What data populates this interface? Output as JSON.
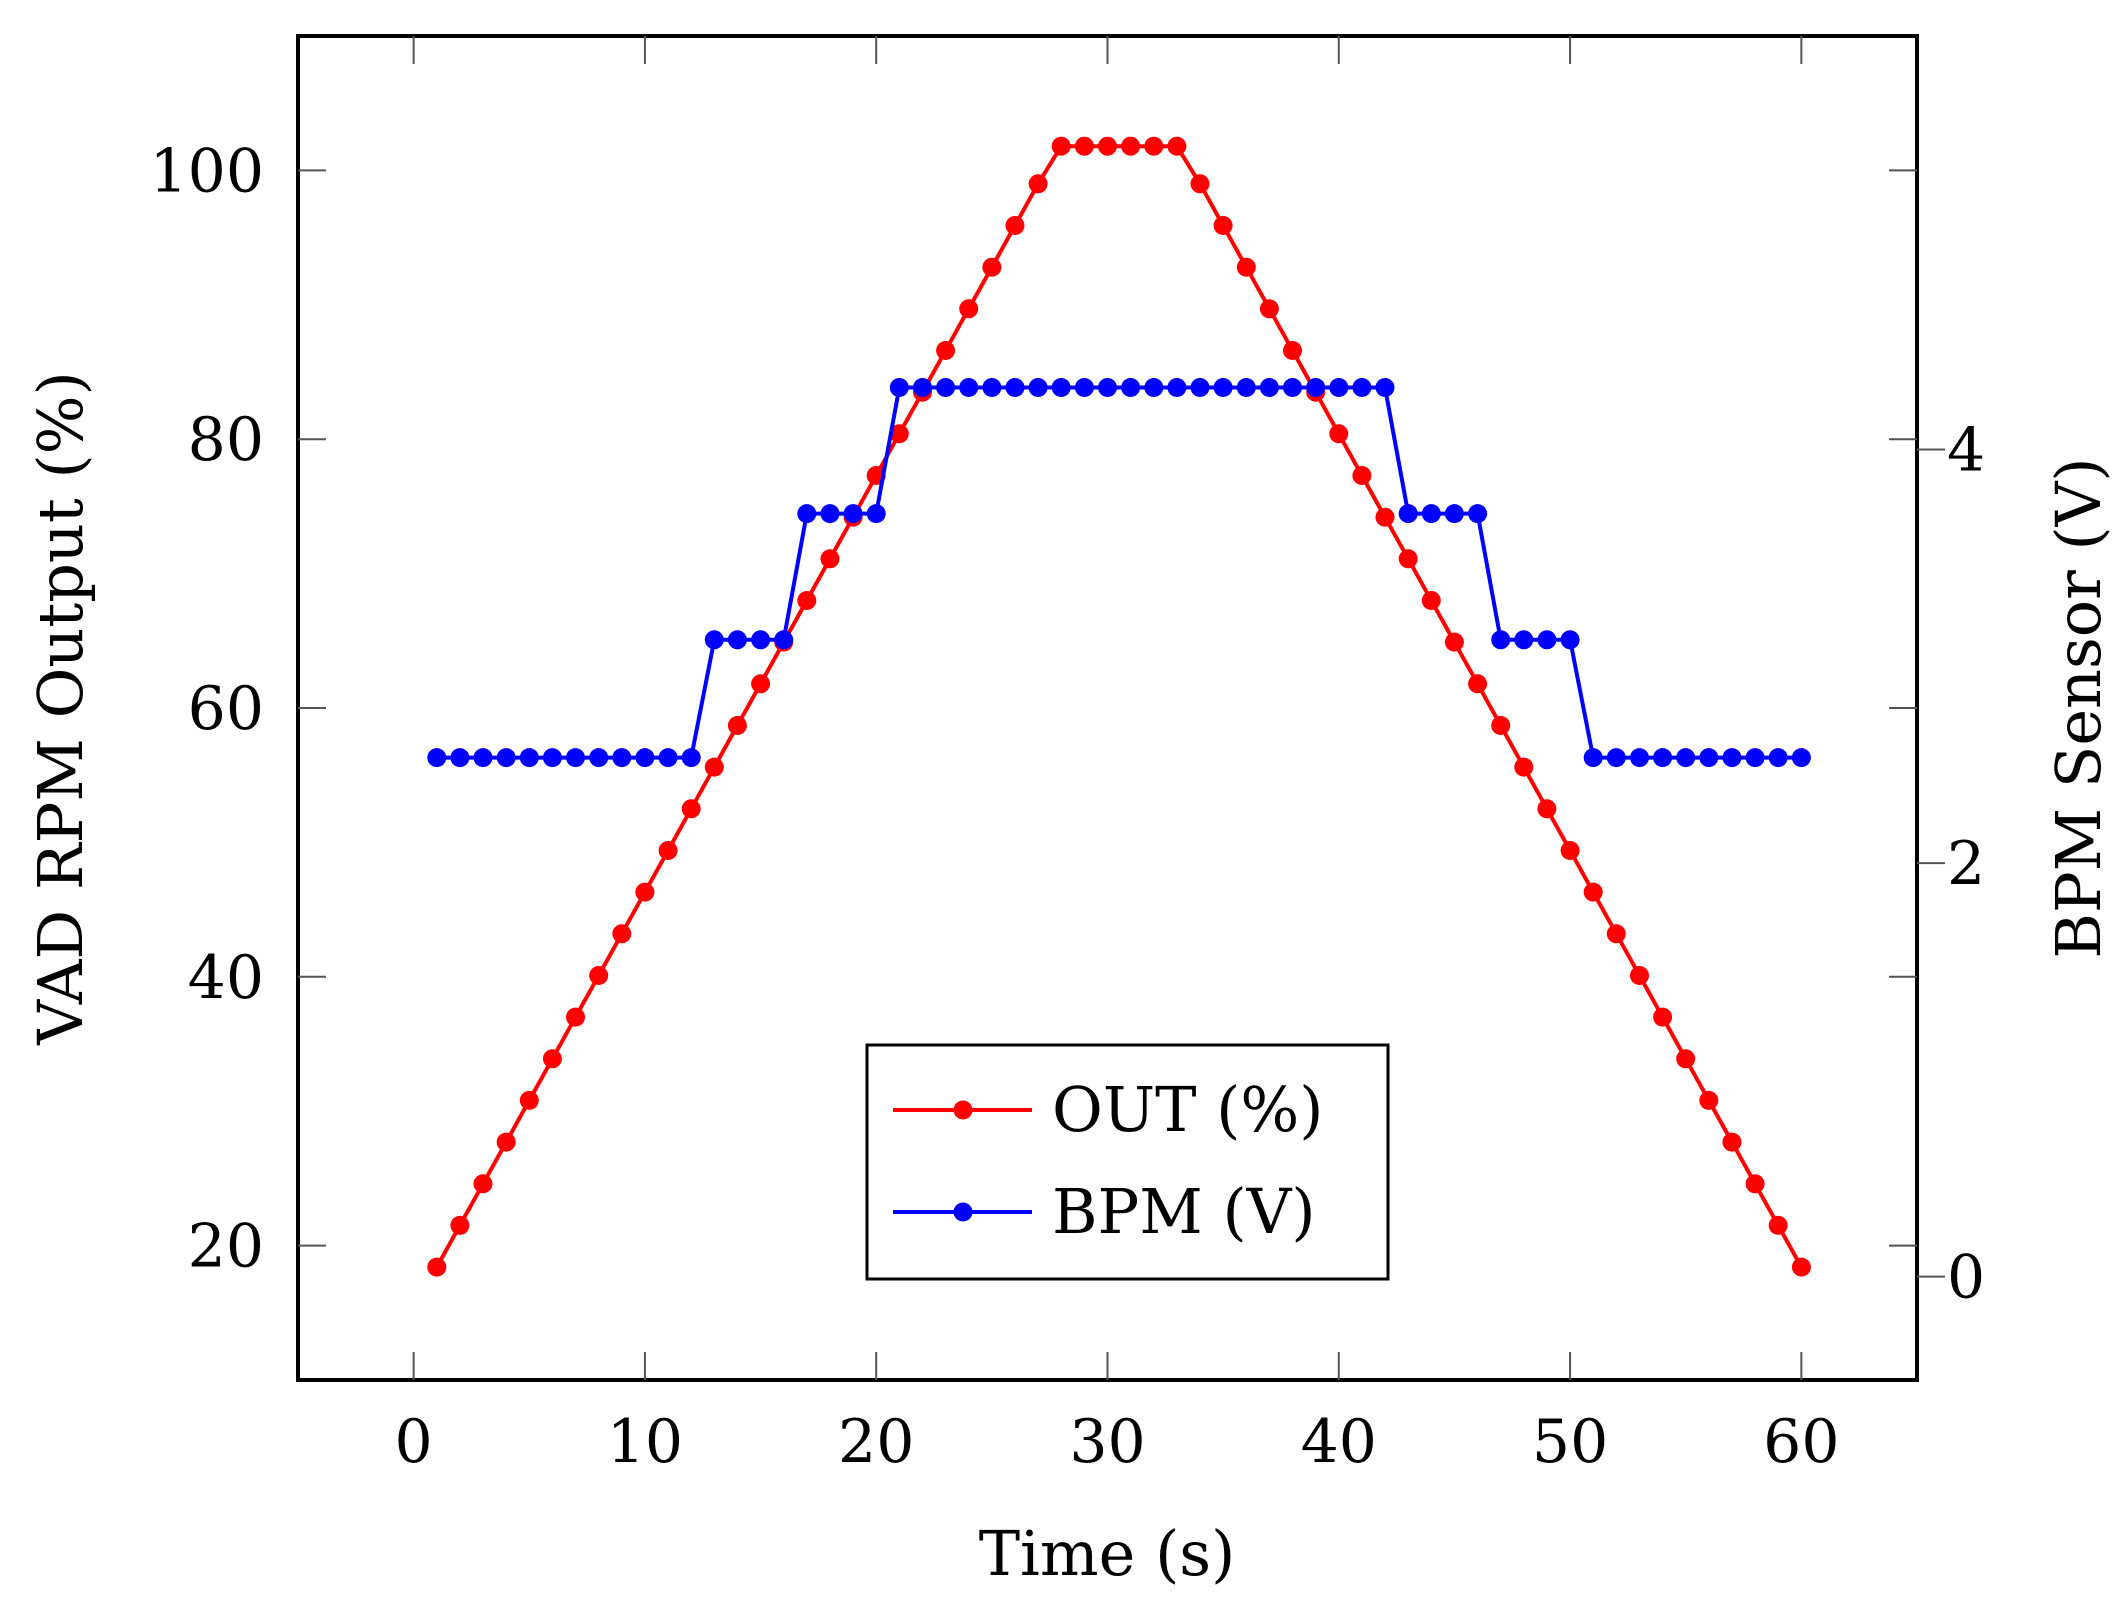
{
  "chart_data": {
    "type": "line",
    "xlabel": "Time (s)",
    "ylabel_left": "VAD RPM Output (%)",
    "ylabel_right": "BPM Sensor (V)",
    "x_range": [
      -5,
      65
    ],
    "y_left_range": [
      10,
      110
    ],
    "y_right_range": [
      -0.5,
      6.0
    ],
    "x_ticks": [
      0,
      10,
      20,
      30,
      40,
      50,
      60
    ],
    "x_tick_labels": [
      "0",
      "10",
      "20",
      "30",
      "40",
      "50",
      "60"
    ],
    "y_left_ticks": [
      20,
      40,
      60,
      80,
      100
    ],
    "y_left_tick_labels": [
      "20",
      "40",
      "60",
      "80",
      "100"
    ],
    "y_right_ticks": [
      0,
      2,
      4
    ],
    "y_right_tick_labels": [
      "0",
      "2",
      "4"
    ],
    "legend_position": "bottom-center",
    "grid": false,
    "x": [
      1,
      2,
      3,
      4,
      5,
      6,
      7,
      8,
      9,
      10,
      11,
      12,
      13,
      14,
      15,
      16,
      17,
      18,
      19,
      20,
      21,
      22,
      23,
      24,
      25,
      26,
      27,
      28,
      29,
      30,
      31,
      32,
      33,
      34,
      35,
      36,
      37,
      38,
      39,
      40,
      41,
      42,
      43,
      44,
      45,
      46,
      47,
      48,
      49,
      50,
      51,
      52,
      53,
      54,
      55,
      56,
      57,
      58,
      59,
      60
    ],
    "series": [
      {
        "name": "OUT (%)",
        "axis": "left",
        "color": "#ff0000",
        "values": [
          18.4,
          21.5,
          24.6,
          27.7,
          30.8,
          33.9,
          37.0,
          40.1,
          43.2,
          46.3,
          49.4,
          52.5,
          55.6,
          58.7,
          61.8,
          64.9,
          68.0,
          71.1,
          74.2,
          77.3,
          80.4,
          83.5,
          86.6,
          89.7,
          92.8,
          95.9,
          99.0,
          101.8,
          101.8,
          101.8,
          101.8,
          101.8,
          101.8,
          99.0,
          95.9,
          92.8,
          89.7,
          86.6,
          83.5,
          80.4,
          77.3,
          74.2,
          71.1,
          68.0,
          64.9,
          61.8,
          58.7,
          55.6,
          52.5,
          49.4,
          46.3,
          43.2,
          40.1,
          37.0,
          33.9,
          30.8,
          27.7,
          24.6,
          21.5,
          18.4
        ]
      },
      {
        "name": "BPM (V)",
        "axis": "right",
        "color": "#0000ff",
        "values": [
          2.51,
          2.51,
          2.51,
          2.51,
          2.51,
          2.51,
          2.51,
          2.51,
          2.51,
          2.51,
          2.51,
          2.51,
          3.08,
          3.08,
          3.08,
          3.08,
          3.69,
          3.69,
          3.69,
          3.69,
          4.3,
          4.3,
          4.3,
          4.3,
          4.3,
          4.3,
          4.3,
          4.3,
          4.3,
          4.3,
          4.3,
          4.3,
          4.3,
          4.3,
          4.3,
          4.3,
          4.3,
          4.3,
          4.3,
          4.3,
          4.3,
          4.3,
          3.69,
          3.69,
          3.69,
          3.69,
          3.08,
          3.08,
          3.08,
          3.08,
          2.51,
          2.51,
          2.51,
          2.51,
          2.51,
          2.51,
          2.51,
          2.51,
          2.51,
          2.51
        ]
      }
    ]
  }
}
